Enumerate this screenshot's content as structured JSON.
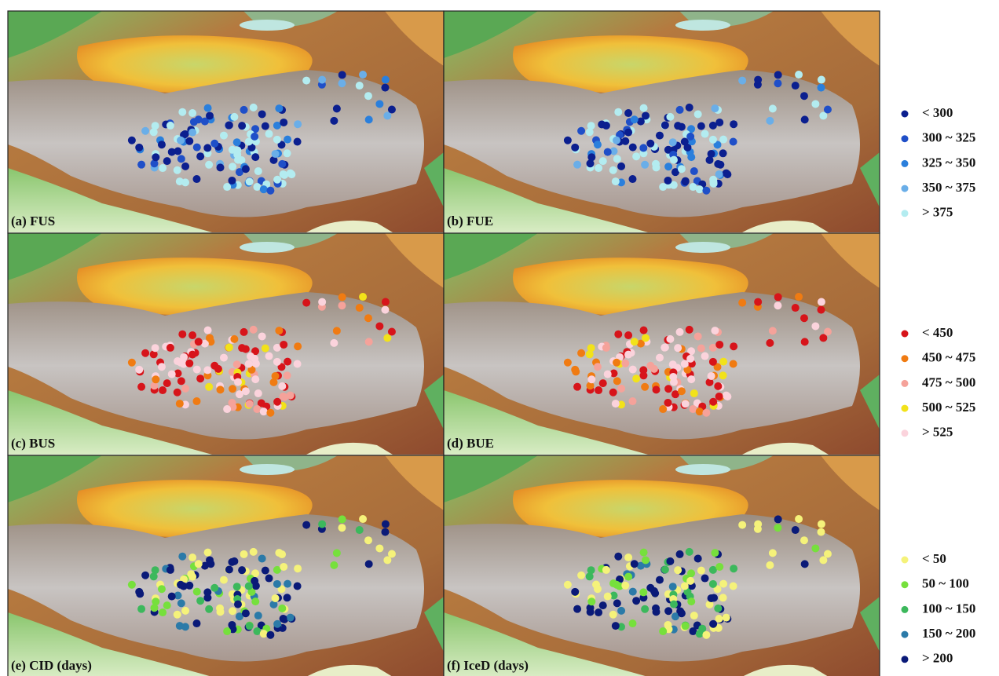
{
  "panels": [
    {
      "label": "(a) FUS",
      "legend": 0
    },
    {
      "label": "(b) FUE",
      "legend": 0
    },
    {
      "label": "(c) BUS",
      "legend": 1
    },
    {
      "label": "(d) BUE",
      "legend": 1
    },
    {
      "label": "(e) CID (days)",
      "legend": 2
    },
    {
      "label": "(f) IceD (days)",
      "legend": 2
    }
  ],
  "legends": [
    {
      "items": [
        {
          "label": "< 300",
          "color": "#0b1f8f"
        },
        {
          "label": "300 ~ 325",
          "color": "#1f4fc8"
        },
        {
          "label": "325 ~ 350",
          "color": "#2a7fdc"
        },
        {
          "label": "350 ~ 375",
          "color": "#6aaee8"
        },
        {
          "label": "> 375",
          "color": "#b3ecf0"
        }
      ]
    },
    {
      "items": [
        {
          "label": "< 450",
          "color": "#d7141a"
        },
        {
          "label": "450 ~ 475",
          "color": "#f07b12"
        },
        {
          "label": "475 ~ 500",
          "color": "#f5a29a"
        },
        {
          "label": "500 ~ 525",
          "color": "#f2e21a"
        },
        {
          "label": "> 525",
          "color": "#fbd3dc"
        }
      ]
    },
    {
      "items": [
        {
          "label": "< 50",
          "color": "#f5f27a"
        },
        {
          "label": "50 ~ 100",
          "color": "#76e03c"
        },
        {
          "label": "100 ~ 150",
          "color": "#3cb85c"
        },
        {
          "label": "150 ~ 200",
          "color": "#2b7aa8"
        },
        {
          "label": "> 200",
          "color": "#0a1a78"
        }
      ]
    }
  ]
}
